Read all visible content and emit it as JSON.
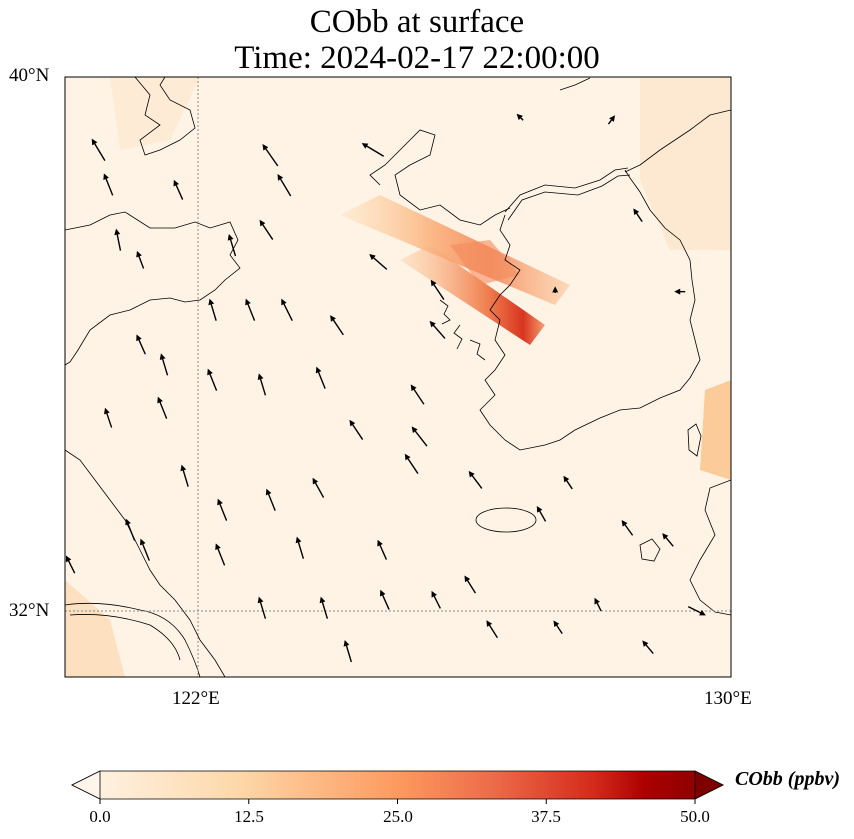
{
  "title": {
    "line1": "CObb at surface",
    "line2": "Time: 2024-02-17 22:00:00"
  },
  "map": {
    "extent": {
      "lon": [
        120,
        130
      ],
      "lat": [
        31,
        40
      ]
    },
    "lat_ticks": [
      {
        "value": 40,
        "label": "40°N"
      },
      {
        "value": 32,
        "label": "32°N"
      }
    ],
    "lon_ticks": [
      {
        "value": 122,
        "label": "122°E"
      },
      {
        "value": 130,
        "label": "130°E"
      }
    ],
    "gridlines": {
      "lon": [
        122
      ],
      "lat": [
        32
      ]
    },
    "wind_vectors": [
      [
        120.5,
        38.91,
        -0.6,
        1
      ],
      [
        120.65,
        38.39,
        -0.4,
        1
      ],
      [
        120.8,
        37.56,
        -0.2,
        1
      ],
      [
        121.13,
        37.26,
        -0.3,
        0.8
      ],
      [
        121.7,
        38.31,
        -0.4,
        0.9
      ],
      [
        122.51,
        37.48,
        -0.3,
        1
      ],
      [
        123.08,
        38.83,
        -0.7,
        1
      ],
      [
        123.29,
        38.38,
        -0.6,
        1
      ],
      [
        123.02,
        37.71,
        -0.6,
        0.9
      ],
      [
        124.62,
        38.91,
        -1,
        0.6
      ],
      [
        126.83,
        39.4,
        -0.3,
        0.3
      ],
      [
        128.21,
        39.36,
        0.3,
        0.4
      ],
      [
        128.6,
        37.93,
        -0.4,
        0.6
      ],
      [
        122.22,
        36.51,
        -0.3,
        1
      ],
      [
        122.78,
        36.51,
        -0.4,
        1
      ],
      [
        123.33,
        36.51,
        -0.5,
        1
      ],
      [
        124.08,
        36.28,
        -0.6,
        0.9
      ],
      [
        125.59,
        36.21,
        -0.7,
        0.8
      ],
      [
        124.7,
        37.23,
        -0.8,
        0.7
      ],
      [
        125.59,
        36.81,
        -0.6,
        0.9
      ],
      [
        127.36,
        36.81,
        0,
        0.3
      ],
      [
        129.23,
        36.78,
        -0.5,
        0
      ],
      [
        121.14,
        35.99,
        -0.4,
        0.9
      ],
      [
        121.49,
        35.69,
        -0.3,
        1
      ],
      [
        122.21,
        35.46,
        -0.4,
        1
      ],
      [
        122.96,
        35.39,
        -0.3,
        1
      ],
      [
        123.84,
        35.49,
        -0.4,
        1
      ],
      [
        125.29,
        35.24,
        -0.6,
        0.9
      ],
      [
        120.65,
        34.89,
        -0.3,
        0.9
      ],
      [
        121.46,
        35.04,
        -0.4,
        1
      ],
      [
        124.37,
        34.71,
        -0.6,
        0.9
      ],
      [
        125.32,
        34.61,
        -0.7,
        0.9
      ],
      [
        121.8,
        34.02,
        -0.3,
        1
      ],
      [
        122.36,
        33.51,
        -0.4,
        1
      ],
      [
        123.09,
        33.66,
        -0.4,
        1
      ],
      [
        123.8,
        33.84,
        -0.5,
        0.9
      ],
      [
        125.2,
        34.2,
        -0.6,
        0.9
      ],
      [
        126.16,
        33.96,
        -0.6,
        0.8
      ],
      [
        127.55,
        33.92,
        -0.4,
        0.6
      ],
      [
        120.98,
        33.21,
        -0.4,
        1
      ],
      [
        121.2,
        32.91,
        -0.4,
        1
      ],
      [
        122.33,
        32.84,
        -0.4,
        1
      ],
      [
        123.53,
        32.94,
        -0.3,
        1
      ],
      [
        124.76,
        32.91,
        -0.4,
        0.9
      ],
      [
        127.15,
        33.45,
        -0.4,
        0.7
      ],
      [
        128.44,
        33.24,
        -0.5,
        0.7
      ],
      [
        129.05,
        33.06,
        -0.5,
        0.6
      ],
      [
        120.08,
        32.69,
        -0.4,
        0.8
      ],
      [
        122.96,
        32.04,
        -0.3,
        1
      ],
      [
        123.89,
        32.04,
        -0.3,
        1
      ],
      [
        124.8,
        32.16,
        -0.4,
        0.9
      ],
      [
        125.57,
        32.16,
        -0.4,
        0.8
      ],
      [
        126.08,
        32.39,
        -0.5,
        0.8
      ],
      [
        126.41,
        31.72,
        -0.5,
        0.8
      ],
      [
        124.25,
        31.39,
        -0.3,
        1
      ],
      [
        127.4,
        31.75,
        -0.4,
        0.6
      ],
      [
        128.0,
        32.09,
        -0.3,
        0.6
      ],
      [
        128.75,
        31.45,
        -0.5,
        0.6
      ],
      [
        129.49,
        31.99,
        0.8,
        -0.4
      ]
    ]
  },
  "colorbar": {
    "label": "CObb (ppbv)",
    "range": [
      0,
      50
    ],
    "ticks": [
      "0.0",
      "12.5",
      "25.0",
      "37.5",
      "50.0"
    ],
    "colors": [
      "#fff5eb",
      "#fdd9ab",
      "#fda46b",
      "#f4703f",
      "#d9351f",
      "#a60000",
      "#7f0000"
    ]
  }
}
